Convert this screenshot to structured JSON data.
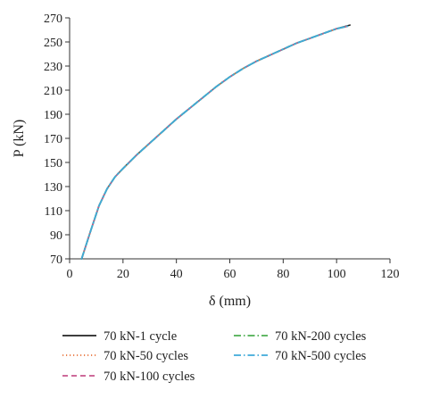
{
  "chart_data": {
    "type": "line",
    "title": "",
    "xlabel": "δ (mm)",
    "ylabel": "P (kN)",
    "xlim": [
      0,
      120
    ],
    "ylim": [
      70,
      270
    ],
    "xticks": [
      0,
      20,
      40,
      60,
      80,
      100,
      120
    ],
    "yticks": [
      70,
      90,
      110,
      130,
      150,
      170,
      190,
      210,
      230,
      250,
      270
    ],
    "grid": false,
    "legend_position": "bottom",
    "series": [
      {
        "name": "70 kN-1 cycle",
        "color": "#222222",
        "dash": "solid",
        "x": [
          4.5,
          8,
          11,
          14,
          17,
          20,
          25,
          30,
          35,
          40,
          45,
          50,
          55,
          60,
          65,
          70,
          75,
          80,
          85,
          90,
          95,
          100,
          105
        ],
        "y": [
          70,
          94,
          114,
          128,
          138,
          145,
          156,
          166,
          176,
          186,
          195,
          204,
          213,
          221,
          228,
          234,
          239,
          244,
          249,
          253,
          257,
          261,
          264
        ]
      },
      {
        "name": "70 kN-50 cycles",
        "color": "#e8743b",
        "dash": "dotted",
        "x": [
          4.5,
          8,
          11,
          14,
          17,
          20,
          25,
          30,
          35,
          40,
          45,
          50,
          55,
          60,
          65,
          70,
          75,
          80,
          85,
          90,
          95,
          100,
          104
        ],
        "y": [
          70,
          94,
          114,
          128,
          138,
          145,
          156,
          166,
          176,
          186,
          195,
          204,
          213,
          221,
          228,
          234,
          239,
          244,
          249,
          253,
          257,
          261,
          263
        ]
      },
      {
        "name": "70 kN-100 cycles",
        "color": "#c8568c",
        "dash": "dashed",
        "x": [
          4.5,
          8,
          11,
          14,
          17,
          20,
          25,
          30,
          35,
          40,
          45,
          50,
          55,
          60,
          65,
          70,
          75,
          80,
          85,
          90,
          95,
          100,
          104
        ],
        "y": [
          70,
          94,
          114,
          128,
          138,
          145,
          156,
          166,
          176,
          186,
          195,
          204,
          213,
          221,
          228,
          234,
          239,
          244,
          249,
          253,
          257,
          261,
          263
        ]
      },
      {
        "name": "70 kN-200 cycles",
        "color": "#4caf50",
        "dash": "dashdot",
        "x": [
          4.5,
          8,
          11,
          14,
          17,
          20,
          25,
          30,
          35,
          40,
          45,
          50,
          55,
          60,
          65,
          70,
          75,
          80,
          85,
          90,
          95,
          100,
          104
        ],
        "y": [
          70,
          94,
          114,
          128,
          138,
          145,
          156,
          166,
          176,
          186,
          195,
          204,
          213,
          221,
          228,
          234,
          239,
          244,
          249,
          253,
          257,
          261,
          263
        ]
      },
      {
        "name": "70 kN-500 cycles",
        "color": "#3fa9d9",
        "dash": "dashdot",
        "x": [
          4.5,
          8,
          11,
          14,
          17,
          20,
          25,
          30,
          35,
          40,
          45,
          50,
          55,
          60,
          65,
          70,
          75,
          80,
          85,
          90,
          95,
          100,
          104
        ],
        "y": [
          70,
          94,
          114,
          128,
          138,
          145,
          156,
          166,
          176,
          186,
          195,
          204,
          213,
          221,
          228,
          234,
          239,
          244,
          249,
          253,
          257,
          261,
          263
        ]
      }
    ]
  }
}
